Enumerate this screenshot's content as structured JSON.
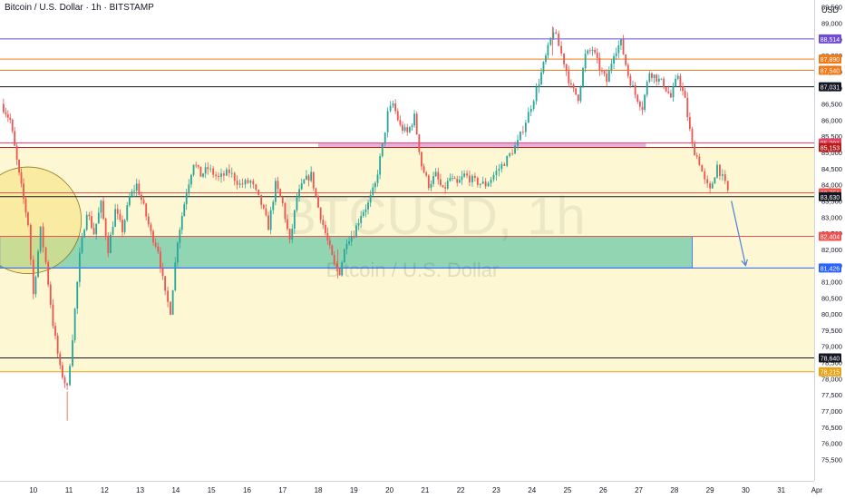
{
  "header": {
    "title": "Bitcoin / U.S. Dollar · 1h · BITSTAMP",
    "currency": "USD"
  },
  "watermark": {
    "symbol": "BTCUSD, 1h",
    "name": "Bitcoin / U.S. Dollar"
  },
  "colors": {
    "background": "#ffffff",
    "up": "#26a69a",
    "down": "#ef5350",
    "zone_fill": "#fdf6c8",
    "support_fill": "#6cc9a8",
    "magenta_band": "#e49ad6",
    "projection": "#4f7fd9"
  },
  "chart_data": {
    "type": "candlestick",
    "title": "Bitcoin / U.S. Dollar · 1h · BITSTAMP",
    "ylabel": "USD",
    "ylim": [
      75500,
      89800
    ],
    "y_ticks": [
      75500,
      76000,
      76500,
      77000,
      77500,
      78000,
      78500,
      79000,
      79500,
      80000,
      80500,
      81000,
      81500,
      82000,
      82500,
      83000,
      83500,
      84000,
      84500,
      85000,
      85500,
      86000,
      86500,
      87000,
      87500,
      88000,
      88500,
      89000,
      89500
    ],
    "x_ticks": [
      "10",
      "11",
      "12",
      "13",
      "14",
      "15",
      "16",
      "17",
      "18",
      "19",
      "20",
      "21",
      "22",
      "23",
      "24",
      "25",
      "26",
      "27",
      "28",
      "29",
      "30",
      "31",
      "Apr"
    ],
    "x_tick_days": [
      10,
      11,
      12,
      13,
      14,
      15,
      16,
      17,
      18,
      19,
      20,
      21,
      22,
      23,
      24,
      25,
      26,
      27,
      28,
      29,
      30,
      31,
      32
    ],
    "x_range_days": [
      9.1,
      32.1
    ],
    "grid": false,
    "price_path": [
      [
        9.1,
        86500
      ],
      [
        9.35,
        86000
      ],
      [
        9.6,
        84300
      ],
      [
        9.85,
        82800
      ],
      [
        10.0,
        80600
      ],
      [
        10.2,
        82600
      ],
      [
        10.35,
        81600
      ],
      [
        10.55,
        79700
      ],
      [
        10.75,
        78300
      ],
      [
        10.95,
        77700
      ],
      [
        11.1,
        79300
      ],
      [
        11.3,
        81800
      ],
      [
        11.5,
        83200
      ],
      [
        11.7,
        82500
      ],
      [
        11.9,
        83400
      ],
      [
        12.1,
        82000
      ],
      [
        12.3,
        83200
      ],
      [
        12.5,
        82600
      ],
      [
        12.7,
        83600
      ],
      [
        12.9,
        84000
      ],
      [
        13.1,
        83300
      ],
      [
        13.3,
        82500
      ],
      [
        13.5,
        82000
      ],
      [
        13.7,
        80600
      ],
      [
        13.85,
        80100
      ],
      [
        14.05,
        82300
      ],
      [
        14.3,
        83800
      ],
      [
        14.5,
        84700
      ],
      [
        14.7,
        84300
      ],
      [
        14.9,
        84500
      ],
      [
        15.2,
        84200
      ],
      [
        15.5,
        84400
      ],
      [
        15.8,
        84000
      ],
      [
        16.1,
        84100
      ],
      [
        16.4,
        83400
      ],
      [
        16.6,
        82700
      ],
      [
        16.8,
        84000
      ],
      [
        17.0,
        83400
      ],
      [
        17.2,
        82200
      ],
      [
        17.4,
        83600
      ],
      [
        17.6,
        84100
      ],
      [
        17.8,
        84300
      ],
      [
        18.0,
        83300
      ],
      [
        18.2,
        82500
      ],
      [
        18.45,
        81500
      ],
      [
        18.6,
        81300
      ],
      [
        18.8,
        82300
      ],
      [
        19.0,
        82500
      ],
      [
        19.2,
        83100
      ],
      [
        19.4,
        83400
      ],
      [
        19.6,
        84000
      ],
      [
        19.8,
        85200
      ],
      [
        19.95,
        86200
      ],
      [
        20.1,
        86500
      ],
      [
        20.3,
        85800
      ],
      [
        20.5,
        85600
      ],
      [
        20.7,
        86100
      ],
      [
        20.9,
        84600
      ],
      [
        21.1,
        84000
      ],
      [
        21.3,
        84300
      ],
      [
        21.5,
        83800
      ],
      [
        21.7,
        84200
      ],
      [
        21.9,
        84000
      ],
      [
        22.1,
        84300
      ],
      [
        22.4,
        84100
      ],
      [
        22.7,
        84000
      ],
      [
        23.0,
        84400
      ],
      [
        23.3,
        84800
      ],
      [
        23.6,
        85300
      ],
      [
        23.9,
        86200
      ],
      [
        24.2,
        87200
      ],
      [
        24.45,
        88200
      ],
      [
        24.6,
        88800
      ],
      [
        24.75,
        88300
      ],
      [
        24.9,
        87800
      ],
      [
        25.1,
        87000
      ],
      [
        25.3,
        86700
      ],
      [
        25.5,
        88000
      ],
      [
        25.7,
        88200
      ],
      [
        25.9,
        87600
      ],
      [
        26.1,
        87200
      ],
      [
        26.3,
        88100
      ],
      [
        26.5,
        88400
      ],
      [
        26.7,
        87400
      ],
      [
        26.9,
        86800
      ],
      [
        27.1,
        86400
      ],
      [
        27.3,
        87500
      ],
      [
        27.5,
        87300
      ],
      [
        27.7,
        87100
      ],
      [
        27.9,
        86700
      ],
      [
        28.1,
        87400
      ],
      [
        28.3,
        86600
      ],
      [
        28.5,
        85200
      ],
      [
        28.7,
        84700
      ],
      [
        28.85,
        84100
      ],
      [
        29.0,
        83800
      ],
      [
        29.2,
        84600
      ],
      [
        29.35,
        84200
      ],
      [
        29.5,
        83800
      ]
    ],
    "extremes": [
      [
        10.95,
        76700
      ],
      [
        24.58,
        88900
      ],
      [
        18.55,
        81100
      ]
    ],
    "horizontal_levels": [
      {
        "price": 88514,
        "label": "88,514",
        "color": "#6f4cd4"
      },
      {
        "price": 87890,
        "label": "87,890",
        "color": "#f07a17"
      },
      {
        "price": 87540,
        "label": "87,540",
        "color": "#f07a17"
      },
      {
        "price": 87031,
        "label": "87,031",
        "color": "#131722"
      },
      {
        "price": 85291,
        "label": "85,291",
        "color": "#e83f5e"
      },
      {
        "price": 85153,
        "label": "85,153",
        "color": "#b71c1c"
      },
      {
        "price": 83751,
        "label": "83,751",
        "color": "#ef5350"
      },
      {
        "price": 83630,
        "label": "83,630",
        "color": "#131722"
      },
      {
        "price": 82404,
        "label": "82,404",
        "color": "#ef5350"
      },
      {
        "price": 81426,
        "label": "81,426",
        "color": "#2962ff"
      },
      {
        "price": 78640,
        "label": "78,640",
        "color": "#131722"
      },
      {
        "price": 78215,
        "label": "78,215",
        "color": "#e8a317"
      }
    ],
    "zones": [
      {
        "type": "range",
        "price_from": 78215,
        "price_to": 85153,
        "color": "#fdf6c8"
      },
      {
        "type": "support",
        "price_from": 81426,
        "price_to": 82404,
        "day_to": 28.5,
        "color": "#6cc9a8"
      },
      {
        "type": "band",
        "price_from": 85153,
        "price_to": 85291,
        "day_from": 18.0,
        "day_to": 27.2,
        "color": "#e49ad6"
      }
    ],
    "circle_marker": {
      "day": 9.85,
      "price": 82900,
      "price_radius": 1650,
      "color": "#f5e27a"
    },
    "projection_arrow": {
      "from": [
        29.6,
        83500
      ],
      "to": [
        30.0,
        81500
      ],
      "color": "#4f7fd9"
    }
  }
}
